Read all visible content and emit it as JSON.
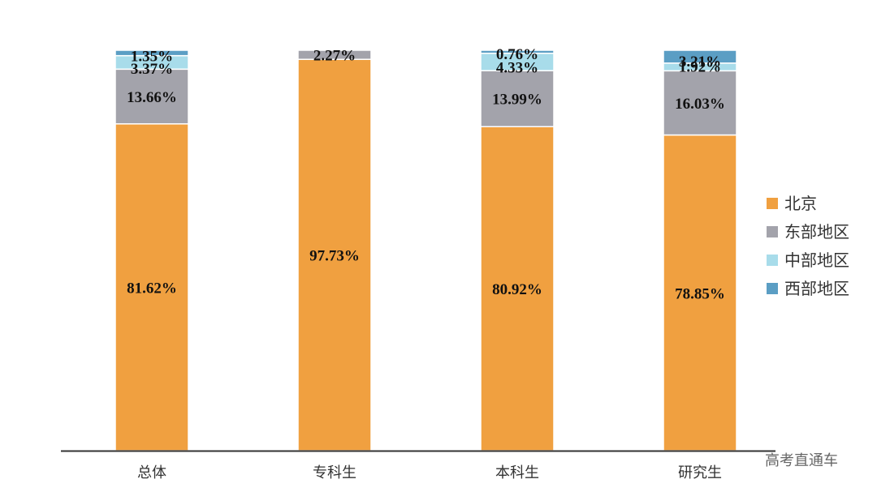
{
  "chart_data": {
    "type": "bar",
    "stacked": true,
    "categories": [
      "总体",
      "专科生",
      "本科生",
      "研究生"
    ],
    "series": [
      {
        "name": "北京",
        "color": "#f0a040",
        "values": [
          81.62,
          97.73,
          80.92,
          78.85
        ],
        "labels": [
          "81.62%",
          "97.73%",
          "80.92%",
          "78.85%"
        ]
      },
      {
        "name": "东部地区",
        "color": "#a3a3ab",
        "values": [
          13.66,
          2.27,
          13.99,
          16.03
        ],
        "labels": [
          "13.66%",
          "2.27%",
          "13.99%",
          "16.03%"
        ]
      },
      {
        "name": "中部地区",
        "color": "#a8dcea",
        "values": [
          3.37,
          0,
          4.33,
          1.92
        ],
        "labels": [
          "3.37%",
          "",
          "4.33%",
          "1.92%"
        ]
      },
      {
        "name": "西部地区",
        "color": "#5b9ec4",
        "values": [
          1.35,
          0,
          0.76,
          3.21
        ],
        "labels": [
          "1.35%",
          "",
          "0.76%",
          "3.21%"
        ]
      }
    ],
    "ylim": [
      0,
      100
    ],
    "legend_position": "right",
    "grid": false
  },
  "watermark": "高考直通车"
}
